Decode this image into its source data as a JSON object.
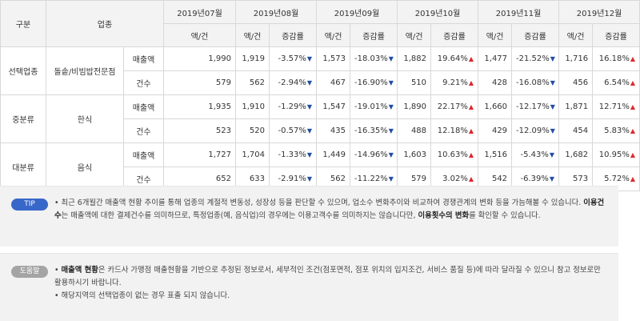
{
  "header": {
    "category": "구분",
    "industry": "업종",
    "months": [
      "2019년07월",
      "2019년08월",
      "2019년09월",
      "2019년10월",
      "2019년11월",
      "2019년12월"
    ],
    "amount": "액/건",
    "change": "증감률"
  },
  "rows": [
    {
      "category": "선택업종",
      "industry": "돌솥/비빔밥전문점",
      "sales": {
        "label": "매출액",
        "first": "1,990",
        "cells": [
          {
            "v": "1,919",
            "r": "-3.57%",
            "d": "down"
          },
          {
            "v": "1,573",
            "r": "-18.03%",
            "d": "down"
          },
          {
            "v": "1,882",
            "r": "19.64%",
            "d": "up"
          },
          {
            "v": "1,477",
            "r": "-21.52%",
            "d": "down"
          },
          {
            "v": "1,716",
            "r": "16.18%",
            "d": "up"
          }
        ]
      },
      "count": {
        "label": "건수",
        "first": "579",
        "cells": [
          {
            "v": "562",
            "r": "-2.94%",
            "d": "down"
          },
          {
            "v": "467",
            "r": "-16.90%",
            "d": "down"
          },
          {
            "v": "510",
            "r": "9.21%",
            "d": "up"
          },
          {
            "v": "428",
            "r": "-16.08%",
            "d": "down"
          },
          {
            "v": "456",
            "r": "6.54%",
            "d": "up"
          }
        ]
      }
    },
    {
      "category": "중분류",
      "industry": "한식",
      "sales": {
        "label": "매출액",
        "first": "1,935",
        "cells": [
          {
            "v": "1,910",
            "r": "-1.29%",
            "d": "down"
          },
          {
            "v": "1,547",
            "r": "-19.01%",
            "d": "down"
          },
          {
            "v": "1,890",
            "r": "22.17%",
            "d": "up"
          },
          {
            "v": "1,660",
            "r": "-12.17%",
            "d": "down"
          },
          {
            "v": "1,871",
            "r": "12.71%",
            "d": "up"
          }
        ]
      },
      "count": {
        "label": "건수",
        "first": "523",
        "cells": [
          {
            "v": "520",
            "r": "-0.57%",
            "d": "down"
          },
          {
            "v": "435",
            "r": "-16.35%",
            "d": "down"
          },
          {
            "v": "488",
            "r": "12.18%",
            "d": "up"
          },
          {
            "v": "429",
            "r": "-12.09%",
            "d": "down"
          },
          {
            "v": "454",
            "r": "5.83%",
            "d": "up"
          }
        ]
      }
    },
    {
      "category": "대분류",
      "industry": "음식",
      "sales": {
        "label": "매출액",
        "first": "1,727",
        "cells": [
          {
            "v": "1,704",
            "r": "-1.33%",
            "d": "down"
          },
          {
            "v": "1,449",
            "r": "-14.96%",
            "d": "down"
          },
          {
            "v": "1,603",
            "r": "10.63%",
            "d": "up"
          },
          {
            "v": "1,516",
            "r": "-5.43%",
            "d": "down"
          },
          {
            "v": "1,682",
            "r": "10.95%",
            "d": "up"
          }
        ]
      },
      "count": {
        "label": "건수",
        "first": "652",
        "cells": [
          {
            "v": "633",
            "r": "-2.91%",
            "d": "down"
          },
          {
            "v": "562",
            "r": "-11.22%",
            "d": "down"
          },
          {
            "v": "579",
            "r": "3.02%",
            "d": "up"
          },
          {
            "v": "542",
            "r": "-6.39%",
            "d": "down"
          },
          {
            "v": "573",
            "r": "5.72%",
            "d": "up"
          }
        ]
      }
    }
  ],
  "arrows": {
    "up": "▲",
    "down": "▼"
  },
  "tip": {
    "badge": "TIP",
    "t1": "• 최근 6개월간 매출액 현황 추이를 통해 업종의 계절적 변동성, 성장성 등을 판단할 수 있으며, 업소수 변화추이와 비교하여 경쟁관계의 변화 등을 가늠해볼 수 있습니다. ",
    "b1": "이용건수",
    "t2": "는 매출액에 대한 결제건수를 의미하므로, 특정업종(예, 음식업)의 경우에는 이용고객수를 의미하지는 않습니다만, ",
    "b2": "이용횟수의 변화",
    "t3": "를 확인할 수 있습니다."
  },
  "help": {
    "badge": "도움말",
    "bullet": "• ",
    "b1": "매출액 현황",
    "t1": "은 카드사 가맹점 매출현황을 기반으로 추정된 정보로서, 세부적인 조건(점포면적, 점포 위치의 입지조건, 서비스 품질 등)에 따라 달라질 수 있으니 참고 정보로만 활용하시기 바랍니다.",
    "t2": "• 해당지역의 선택업종이 없는 경우 표출 되지 않습니다."
  },
  "colors": {
    "up": "#e0262e",
    "down": "#1f4ea6",
    "tip_badge": "#3767c9",
    "help_badge": "#a4a4a4"
  }
}
